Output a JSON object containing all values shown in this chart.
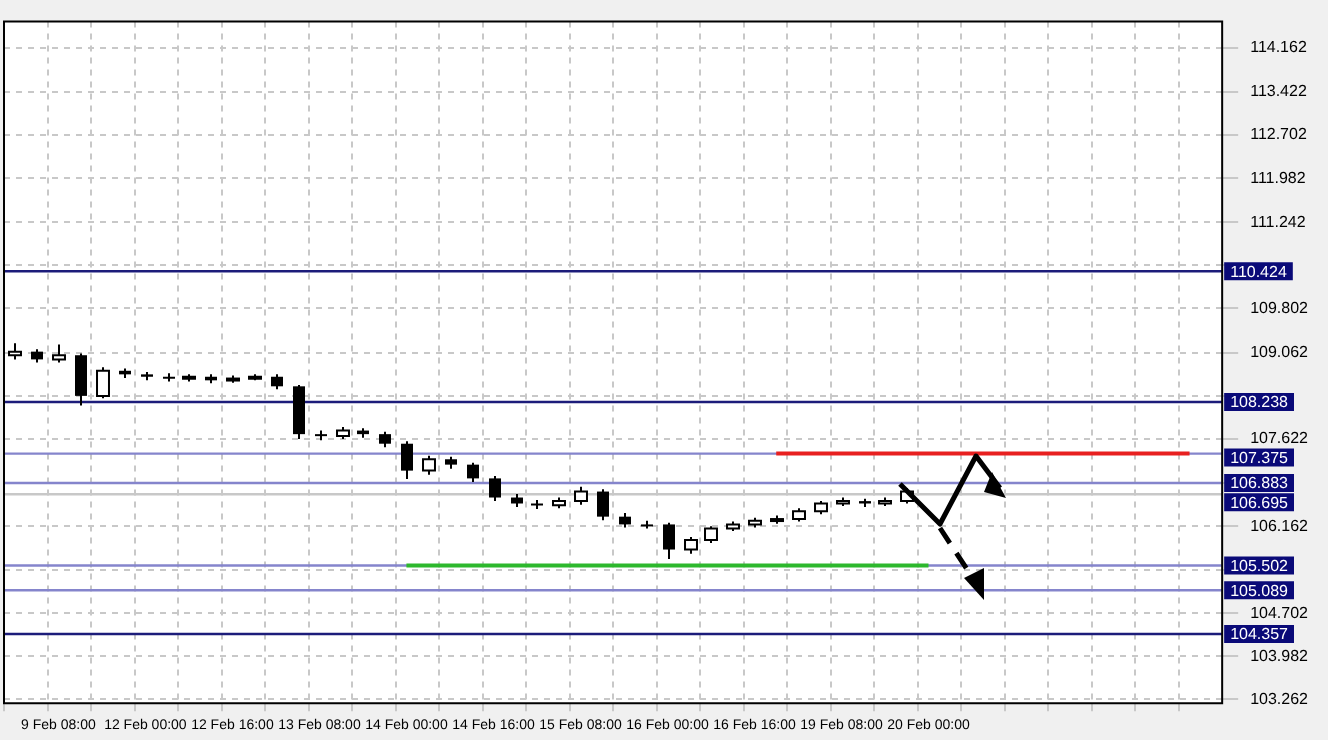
{
  "chart_data": {
    "type": "candlestick",
    "categories": [
      null,
      null,
      "9 Feb 08:00",
      null,
      null,
      null,
      "12 Feb 00:00",
      null,
      null,
      null,
      "12 Feb 16:00",
      null,
      null,
      null,
      "13 Feb 08:00",
      null,
      null,
      null,
      "14 Feb 00:00",
      null,
      null,
      null,
      "14 Feb 16:00",
      null,
      null,
      null,
      "15 Feb 08:00",
      null,
      null,
      null,
      "16 Feb 00:00",
      null,
      null,
      null,
      "16 Feb 16:00",
      null,
      null,
      null,
      "19 Feb 08:00",
      null,
      null,
      null,
      "20 Feb 00:00",
      null,
      null,
      null,
      null,
      null,
      null,
      null,
      null,
      null,
      null,
      null,
      null,
      null
    ],
    "ohlc": [
      [
        109.02,
        109.22,
        108.95,
        109.08
      ],
      [
        109.08,
        109.12,
        108.9,
        108.95
      ],
      [
        108.95,
        109.2,
        108.9,
        109.02
      ],
      [
        109.02,
        109.05,
        108.18,
        108.34
      ],
      [
        108.34,
        108.82,
        108.3,
        108.76
      ],
      [
        108.76,
        108.8,
        108.64,
        108.7
      ],
      [
        108.7,
        108.74,
        108.6,
        108.66
      ],
      [
        108.66,
        108.72,
        108.58,
        108.63
      ],
      [
        108.63,
        108.7,
        108.58,
        108.66
      ],
      [
        108.66,
        108.7,
        108.55,
        108.6
      ],
      [
        108.6,
        108.68,
        108.56,
        108.63
      ],
      [
        108.63,
        108.7,
        108.6,
        108.66
      ],
      [
        108.66,
        108.7,
        108.45,
        108.5
      ],
      [
        108.5,
        108.52,
        107.62,
        107.7
      ],
      [
        107.7,
        107.76,
        107.6,
        107.67
      ],
      [
        107.67,
        107.82,
        107.62,
        107.76
      ],
      [
        107.76,
        107.8,
        107.64,
        107.7
      ],
      [
        107.7,
        107.74,
        107.48,
        107.54
      ],
      [
        107.54,
        107.58,
        106.95,
        107.09
      ],
      [
        107.09,
        107.34,
        107.02,
        107.28
      ],
      [
        107.28,
        107.32,
        107.12,
        107.19
      ],
      [
        107.19,
        107.22,
        106.9,
        106.96
      ],
      [
        106.96,
        107.0,
        106.58,
        106.64
      ],
      [
        106.64,
        106.7,
        106.48,
        106.54
      ],
      [
        106.54,
        106.6,
        106.45,
        106.51
      ],
      [
        106.51,
        106.64,
        106.46,
        106.58
      ],
      [
        106.58,
        106.82,
        106.52,
        106.74
      ],
      [
        106.74,
        106.78,
        106.26,
        106.32
      ],
      [
        106.32,
        106.38,
        106.14,
        106.19
      ],
      [
        106.19,
        106.25,
        106.12,
        106.19
      ],
      [
        106.19,
        106.22,
        105.61,
        105.77
      ],
      [
        105.77,
        105.98,
        105.7,
        105.93
      ],
      [
        105.93,
        106.16,
        105.88,
        106.12
      ],
      [
        106.12,
        106.24,
        106.08,
        106.19
      ],
      [
        106.19,
        106.3,
        106.14,
        106.25
      ],
      [
        106.25,
        106.34,
        106.2,
        106.28
      ],
      [
        106.28,
        106.46,
        106.24,
        106.41
      ],
      [
        106.41,
        106.58,
        106.36,
        106.54
      ],
      [
        106.54,
        106.64,
        106.5,
        106.58
      ],
      [
        106.58,
        106.62,
        106.48,
        106.54
      ],
      [
        106.54,
        106.64,
        106.5,
        106.58
      ],
      [
        106.58,
        106.8,
        106.54,
        106.74
      ],
      null,
      null,
      null,
      null,
      null,
      null,
      null,
      null,
      null,
      null,
      null,
      null,
      null,
      null
    ],
    "series": [
      {
        "type": "line",
        "color": "#e82020",
        "values": [
          null,
          null,
          null,
          null,
          null,
          null,
          null,
          null,
          null,
          null,
          null,
          null,
          null,
          null,
          null,
          null,
          null,
          null,
          null,
          null,
          null,
          null,
          null,
          null,
          null,
          null,
          null,
          null,
          null,
          null,
          null,
          null,
          null,
          null,
          null,
          107.375,
          107.375,
          107.375,
          107.375,
          107.375,
          107.375,
          107.375,
          107.375,
          107.375,
          107.375,
          107.375,
          107.375,
          107.375,
          107.375,
          107.375,
          107.375,
          107.375,
          107.375,
          107.375,
          107.375,
          null
        ]
      },
      {
        "type": "line",
        "color": "#2db82d",
        "values": [
          null,
          null,
          null,
          null,
          null,
          null,
          null,
          null,
          null,
          null,
          null,
          null,
          null,
          null,
          null,
          null,
          null,
          null,
          105.502,
          105.502,
          105.502,
          105.502,
          105.502,
          105.502,
          105.502,
          105.502,
          105.502,
          105.502,
          105.502,
          105.502,
          105.502,
          105.502,
          105.502,
          105.502,
          105.502,
          105.502,
          105.502,
          105.502,
          105.502,
          105.502,
          105.502,
          105.502,
          105.502,
          null,
          null,
          null,
          null,
          null,
          null,
          null,
          null,
          null,
          null,
          null,
          null,
          null
        ]
      }
    ],
    "ylim": [
      103.2,
      114.6
    ],
    "yticks": [
      103.262,
      103.982,
      104.702,
      {
        "value": 105.422,
        "label": null
      },
      106.162,
      {
        "value": 106.882,
        "label": null
      },
      107.622,
      {
        "value": 108.342,
        "label": null
      },
      109.062,
      109.802,
      {
        "value": 110.522,
        "label": null
      },
      111.242,
      111.982,
      112.702,
      113.422,
      114.162
    ],
    "ref_lines": [
      {
        "axis": "y",
        "value": 110.424,
        "label": "110.424",
        "color": "#1c1c7a"
      },
      {
        "axis": "y",
        "value": 108.238,
        "label": "108.238",
        "color": "#1c1c7a"
      },
      {
        "axis": "y",
        "value": 107.375,
        "label": "107.375",
        "color": "#8585cc"
      },
      {
        "axis": "y",
        "value": 106.883,
        "label": "106.883",
        "color": "#8585cc"
      },
      {
        "axis": "y",
        "value": 106.695,
        "label": "106.695",
        "color": "#c8c8c8"
      },
      {
        "axis": "y",
        "value": 105.502,
        "label": "105.502",
        "color": "#8585cc"
      },
      {
        "axis": "y",
        "value": 105.089,
        "label": "105.089",
        "color": "#8585cc"
      },
      {
        "axis": "y",
        "value": 104.357,
        "label": "104.357",
        "color": "#1c1c7a"
      }
    ],
    "grid": true,
    "legend": false,
    "marker": "none"
  }
}
